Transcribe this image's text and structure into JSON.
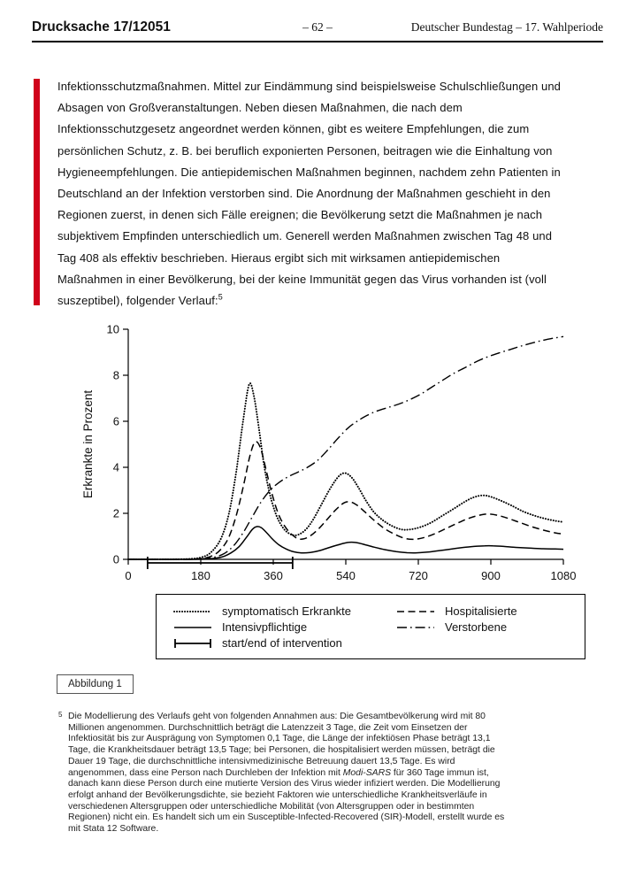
{
  "header": {
    "doc_number": "Drucksache 17/12051",
    "page_number": "– 62 –",
    "publication": "Deutscher Bundestag – 17. Wahlperiode"
  },
  "colors": {
    "change_bar": "#d0021b",
    "text": "#111111",
    "chart_line": "#000000"
  },
  "body": {
    "lines": [
      "Infektionsschutzmaßnahmen. Mittel zur Eindämmung sind beispielsweise Schulschließungen und",
      "Absagen von Großveranstaltungen. Neben diesen Maßnahmen, die nach dem",
      "Infektionsschutzgesetz angeordnet werden können, gibt es weitere Empfehlungen, die zum",
      "persönlichen Schutz, z. B. bei beruflich exponierten Personen, beitragen wie die Einhaltung von",
      "Hygieneempfehlungen. Die antiepidemischen Maßnahmen beginnen, nachdem zehn Patienten in",
      "Deutschland an der Infektion verstorben sind. Die Anordnung der Maßnahmen geschieht in den",
      "Regionen zuerst, in denen sich Fälle ereignen; die Bevölkerung setzt die Maßnahmen je nach",
      "subjektivem Empfinden unterschiedlich um. Generell werden Maßnahmen zwischen Tag 48 und",
      "Tag 408 als effektiv beschrieben. Hieraus ergibt sich mit wirksamen antiepidemischen",
      "Maßnahmen in einer Bevölkerung, bei der keine Immunität gegen das Virus vorhanden ist (voll"
    ],
    "last_line": "suszeptibel), folgender Verlauf:",
    "footnote_ref": "5"
  },
  "figure": {
    "caption": "Abbildung 1"
  },
  "footnote": {
    "marker": "5",
    "lines_before": [
      "Die Modellierung des Verlaufs geht von folgenden Annahmen aus: Die Gesamtbevölkerung wird mit 80",
      "Millionen angenommen. Durchschnittlich beträgt die Latenzzeit 3 Tage, die Zeit vom Einsetzen der",
      "Infektiosität bis zur Ausprägung von Symptomen 0,1 Tage, die Länge der infektiösen Phase beträgt 13,1",
      "Tage, die Krankheitsdauer beträgt 13,5 Tage; bei Personen, die hospitalisiert werden müssen, beträgt die",
      "Dauer 19 Tage, die durchschnittliche intensivmedizinische Betreuung dauert 13,5 Tage. Es wird"
    ],
    "italic_line": {
      "before": "angenommen, dass eine Person nach Durchleben der Infektion mit ",
      "italic": "Modi-SARS",
      "after": " für 360 Tage immun ist,"
    },
    "lines_after": [
      "danach kann diese Person durch eine mutierte Version des Virus wieder infiziert werden. Die Modellierung",
      "erfolgt anhand der Bevölkerungsdichte, sie bezieht Faktoren wie unterschiedliche Krankheitsverläufe in",
      "verschiedenen Altersgruppen oder unterschiedliche Mobilität (von Altersgruppen oder in bestimmten",
      "Regionen) nicht ein. Es handelt sich um ein Susceptible-Infected-Recovered (SIR)-Modell, erstellt wurde es",
      "mit Stata 12 Software."
    ]
  },
  "chart_data": {
    "type": "line",
    "title": "",
    "xlabel": "",
    "ylabel": "Erkrankte in Prozent",
    "xlim": [
      0,
      1080
    ],
    "ylim": [
      0,
      10
    ],
    "xticks": [
      0,
      180,
      360,
      540,
      720,
      900,
      1080
    ],
    "yticks": [
      0,
      2,
      4,
      6,
      8,
      10
    ],
    "grid": false,
    "legend_position": "bottom-boxed",
    "series": [
      {
        "name": "symptomatisch Erkrankte",
        "style": "dotted",
        "points": [
          [
            0,
            0
          ],
          [
            100,
            0
          ],
          [
            150,
            0.02
          ],
          [
            180,
            0.08
          ],
          [
            205,
            0.3
          ],
          [
            230,
            0.9
          ],
          [
            250,
            2.0
          ],
          [
            268,
            3.8
          ],
          [
            285,
            6.0
          ],
          [
            300,
            7.6
          ],
          [
            312,
            7.1
          ],
          [
            325,
            5.6
          ],
          [
            338,
            4.0
          ],
          [
            352,
            2.8
          ],
          [
            368,
            1.9
          ],
          [
            385,
            1.35
          ],
          [
            402,
            1.1
          ],
          [
            418,
            1.05
          ],
          [
            438,
            1.25
          ],
          [
            458,
            1.7
          ],
          [
            480,
            2.4
          ],
          [
            502,
            3.1
          ],
          [
            522,
            3.6
          ],
          [
            538,
            3.75
          ],
          [
            555,
            3.55
          ],
          [
            572,
            3.1
          ],
          [
            590,
            2.55
          ],
          [
            610,
            2.05
          ],
          [
            632,
            1.7
          ],
          [
            655,
            1.45
          ],
          [
            678,
            1.3
          ],
          [
            700,
            1.3
          ],
          [
            725,
            1.4
          ],
          [
            752,
            1.6
          ],
          [
            780,
            1.9
          ],
          [
            808,
            2.2
          ],
          [
            835,
            2.5
          ],
          [
            858,
            2.7
          ],
          [
            880,
            2.78
          ],
          [
            900,
            2.72
          ],
          [
            925,
            2.55
          ],
          [
            950,
            2.35
          ],
          [
            978,
            2.1
          ],
          [
            1005,
            1.92
          ],
          [
            1032,
            1.78
          ],
          [
            1058,
            1.68
          ],
          [
            1080,
            1.62
          ]
        ]
      },
      {
        "name": "Hospitalisierte",
        "style": "dashed",
        "points": [
          [
            0,
            0
          ],
          [
            120,
            0
          ],
          [
            170,
            0.02
          ],
          [
            200,
            0.1
          ],
          [
            225,
            0.35
          ],
          [
            248,
            0.9
          ],
          [
            268,
            1.9
          ],
          [
            286,
            3.2
          ],
          [
            302,
            4.5
          ],
          [
            315,
            5.1
          ],
          [
            328,
            4.85
          ],
          [
            342,
            3.9
          ],
          [
            356,
            2.9
          ],
          [
            372,
            2.0
          ],
          [
            390,
            1.4
          ],
          [
            408,
            1.05
          ],
          [
            425,
            0.88
          ],
          [
            445,
            0.95
          ],
          [
            468,
            1.25
          ],
          [
            492,
            1.7
          ],
          [
            515,
            2.15
          ],
          [
            535,
            2.45
          ],
          [
            550,
            2.5
          ],
          [
            568,
            2.35
          ],
          [
            588,
            2.05
          ],
          [
            610,
            1.7
          ],
          [
            635,
            1.35
          ],
          [
            660,
            1.1
          ],
          [
            685,
            0.92
          ],
          [
            708,
            0.87
          ],
          [
            735,
            0.95
          ],
          [
            762,
            1.12
          ],
          [
            790,
            1.35
          ],
          [
            818,
            1.58
          ],
          [
            845,
            1.78
          ],
          [
            872,
            1.92
          ],
          [
            895,
            1.97
          ],
          [
            920,
            1.9
          ],
          [
            948,
            1.75
          ],
          [
            975,
            1.58
          ],
          [
            1005,
            1.4
          ],
          [
            1035,
            1.25
          ],
          [
            1060,
            1.15
          ],
          [
            1080,
            1.1
          ]
        ]
      },
      {
        "name": "Intensivpflichtige",
        "style": "solid",
        "points": [
          [
            0,
            0
          ],
          [
            160,
            0
          ],
          [
            205,
            0.03
          ],
          [
            232,
            0.1
          ],
          [
            255,
            0.28
          ],
          [
            275,
            0.55
          ],
          [
            293,
            0.95
          ],
          [
            308,
            1.3
          ],
          [
            318,
            1.42
          ],
          [
            330,
            1.38
          ],
          [
            344,
            1.15
          ],
          [
            358,
            0.88
          ],
          [
            374,
            0.63
          ],
          [
            392,
            0.45
          ],
          [
            410,
            0.33
          ],
          [
            430,
            0.28
          ],
          [
            452,
            0.3
          ],
          [
            475,
            0.38
          ],
          [
            500,
            0.52
          ],
          [
            525,
            0.65
          ],
          [
            548,
            0.74
          ],
          [
            565,
            0.73
          ],
          [
            585,
            0.65
          ],
          [
            610,
            0.53
          ],
          [
            638,
            0.42
          ],
          [
            665,
            0.34
          ],
          [
            692,
            0.29
          ],
          [
            712,
            0.28
          ],
          [
            740,
            0.31
          ],
          [
            768,
            0.37
          ],
          [
            798,
            0.44
          ],
          [
            828,
            0.51
          ],
          [
            858,
            0.56
          ],
          [
            885,
            0.59
          ],
          [
            905,
            0.59
          ],
          [
            932,
            0.56
          ],
          [
            962,
            0.52
          ],
          [
            995,
            0.49
          ],
          [
            1030,
            0.46
          ],
          [
            1060,
            0.45
          ],
          [
            1080,
            0.44
          ]
        ]
      },
      {
        "name": "Verstorbene",
        "style": "dashdot",
        "points": [
          [
            0,
            0
          ],
          [
            140,
            0
          ],
          [
            180,
            0.02
          ],
          [
            210,
            0.08
          ],
          [
            238,
            0.25
          ],
          [
            262,
            0.6
          ],
          [
            285,
            1.15
          ],
          [
            308,
            1.85
          ],
          [
            330,
            2.5
          ],
          [
            352,
            3.0
          ],
          [
            375,
            3.35
          ],
          [
            398,
            3.6
          ],
          [
            420,
            3.78
          ],
          [
            445,
            4.0
          ],
          [
            470,
            4.3
          ],
          [
            495,
            4.75
          ],
          [
            520,
            5.25
          ],
          [
            545,
            5.7
          ],
          [
            568,
            6.0
          ],
          [
            592,
            6.25
          ],
          [
            618,
            6.45
          ],
          [
            645,
            6.6
          ],
          [
            672,
            6.75
          ],
          [
            700,
            6.95
          ],
          [
            728,
            7.2
          ],
          [
            755,
            7.5
          ],
          [
            782,
            7.8
          ],
          [
            810,
            8.1
          ],
          [
            838,
            8.35
          ],
          [
            865,
            8.6
          ],
          [
            892,
            8.8
          ],
          [
            920,
            8.97
          ],
          [
            948,
            9.12
          ],
          [
            975,
            9.27
          ],
          [
            1002,
            9.4
          ],
          [
            1030,
            9.52
          ],
          [
            1058,
            9.62
          ],
          [
            1080,
            9.68
          ]
        ]
      }
    ],
    "intervention": {
      "label": "start/end of intervention",
      "start": 48,
      "end": 408
    }
  }
}
